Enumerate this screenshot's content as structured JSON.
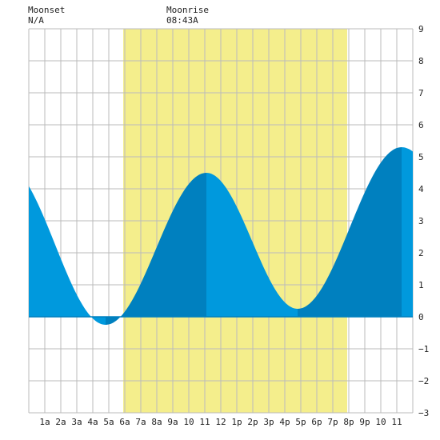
{
  "header": {
    "moonset": {
      "label": "Moonset",
      "time": "N/A"
    },
    "moonrise": {
      "label": "Moonrise",
      "time": "08:43A"
    }
  },
  "chart_data": {
    "type": "area",
    "title": "",
    "xlabel": "",
    "ylabel": "",
    "x_tick_labels": [
      "1a",
      "2a",
      "3a",
      "4a",
      "5a",
      "6a",
      "7a",
      "8a",
      "9a",
      "10",
      "11",
      "12",
      "1p",
      "2p",
      "3p",
      "4p",
      "5p",
      "6p",
      "7p",
      "8p",
      "9p",
      "10",
      "11"
    ],
    "y_ticks": [
      -3,
      -2,
      -1,
      0,
      1,
      2,
      3,
      4,
      5,
      6,
      7,
      8,
      9
    ],
    "xlim_hours": [
      0,
      24
    ],
    "ylim": [
      -3,
      9
    ],
    "grid": true,
    "highlight_band_hours": [
      5.9,
      19.9
    ],
    "tide_extremes": [
      {
        "hour": 4.8,
        "height": -0.25,
        "type": "low"
      },
      {
        "hour": 11.1,
        "height": 4.5,
        "type": "high"
      },
      {
        "hour": 16.8,
        "height": 0.25,
        "type": "low"
      },
      {
        "hour": 23.3,
        "height": 5.3,
        "type": "high"
      }
    ],
    "start_height": 4.7,
    "end_height": 5.15,
    "colors": {
      "highlight": "#f4ee8c",
      "tide_light": "#0099dd",
      "tide_dark": "#0080bf",
      "grid": "#bbbbbb",
      "zero_line": "#0080bf"
    }
  }
}
